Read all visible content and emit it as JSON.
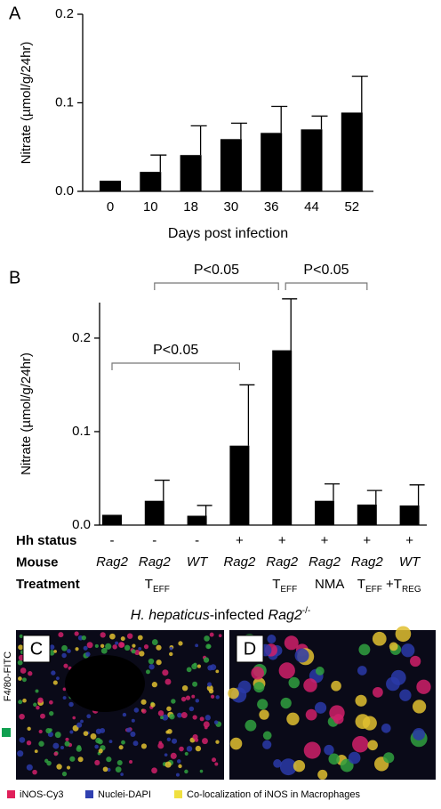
{
  "chart_data": [
    {
      "type": "bar",
      "panel": "A",
      "y_label": "Nitrate (µmol/g/24hr)",
      "x_label": "Days post infection",
      "categories": [
        "0",
        "10",
        "18",
        "30",
        "36",
        "44",
        "52"
      ],
      "values": [
        0.012,
        0.022,
        0.041,
        0.059,
        0.066,
        0.07,
        0.089
      ],
      "errors": [
        0,
        0.019,
        0.033,
        0.018,
        0.03,
        0.015,
        0.041
      ],
      "color": "#000000",
      "ylim": [
        0,
        0.2
      ],
      "yticks": [
        {
          "value": 0,
          "label": "0.0"
        },
        0.1,
        0.2
      ]
    },
    {
      "type": "bar",
      "panel": "B",
      "y_label": "Nitrate (µmol/g/24hr)",
      "row_titles": [
        "Hh status",
        "Mouse",
        "Treatment"
      ],
      "hh_status": [
        "-",
        "-",
        "-",
        "+",
        "+",
        "+",
        "+",
        "+"
      ],
      "mouse": [
        "Rag2",
        "Rag2",
        "WT",
        "Rag2",
        "Rag2",
        "Rag2",
        "Rag2",
        "WT"
      ],
      "treatment": [
        null,
        [
          {
            "text": "T"
          },
          {
            "sub": "EFF"
          }
        ],
        null,
        null,
        [
          {
            "text": "T"
          },
          {
            "sub": "EFF"
          }
        ],
        [
          {
            "text": "NMA"
          }
        ],
        [
          {
            "text": "T"
          },
          {
            "sub": "EFF"
          },
          {
            "text": " +T"
          },
          {
            "sub": "REG"
          }
        ],
        null
      ],
      "values": [
        0.011,
        0.026,
        0.01,
        0.085,
        0.187,
        0.026,
        0.022,
        0.021
      ],
      "errors": [
        0,
        0.022,
        0.011,
        0.065,
        0.055,
        0.018,
        0.015,
        0.022
      ],
      "annotations": [
        "P<0.05",
        "P<0.05",
        "P<0.05"
      ],
      "color": "#000000",
      "ylim": [
        0,
        0.238
      ],
      "yticks": [
        {
          "value": 0,
          "label": "0.0"
        },
        0.1,
        0.2
      ]
    }
  ],
  "images": {
    "subtitle": [
      {
        "text": "H. hepaticus"
      },
      {
        "plain": "-infected "
      },
      {
        "text": "Rag2"
      },
      {
        "sup": "-/-"
      }
    ],
    "panel_c": "C",
    "panel_d": "D",
    "side_label": "F4/80-FITC",
    "legend": [
      {
        "name": "iNOS-Cy3",
        "color": "#e0205a"
      },
      {
        "name": "Nuclei-DAPI",
        "color": "#3040b0"
      },
      {
        "name": "Co-localization of iNOS in Macrophages",
        "color": "#f0e040"
      }
    ]
  }
}
